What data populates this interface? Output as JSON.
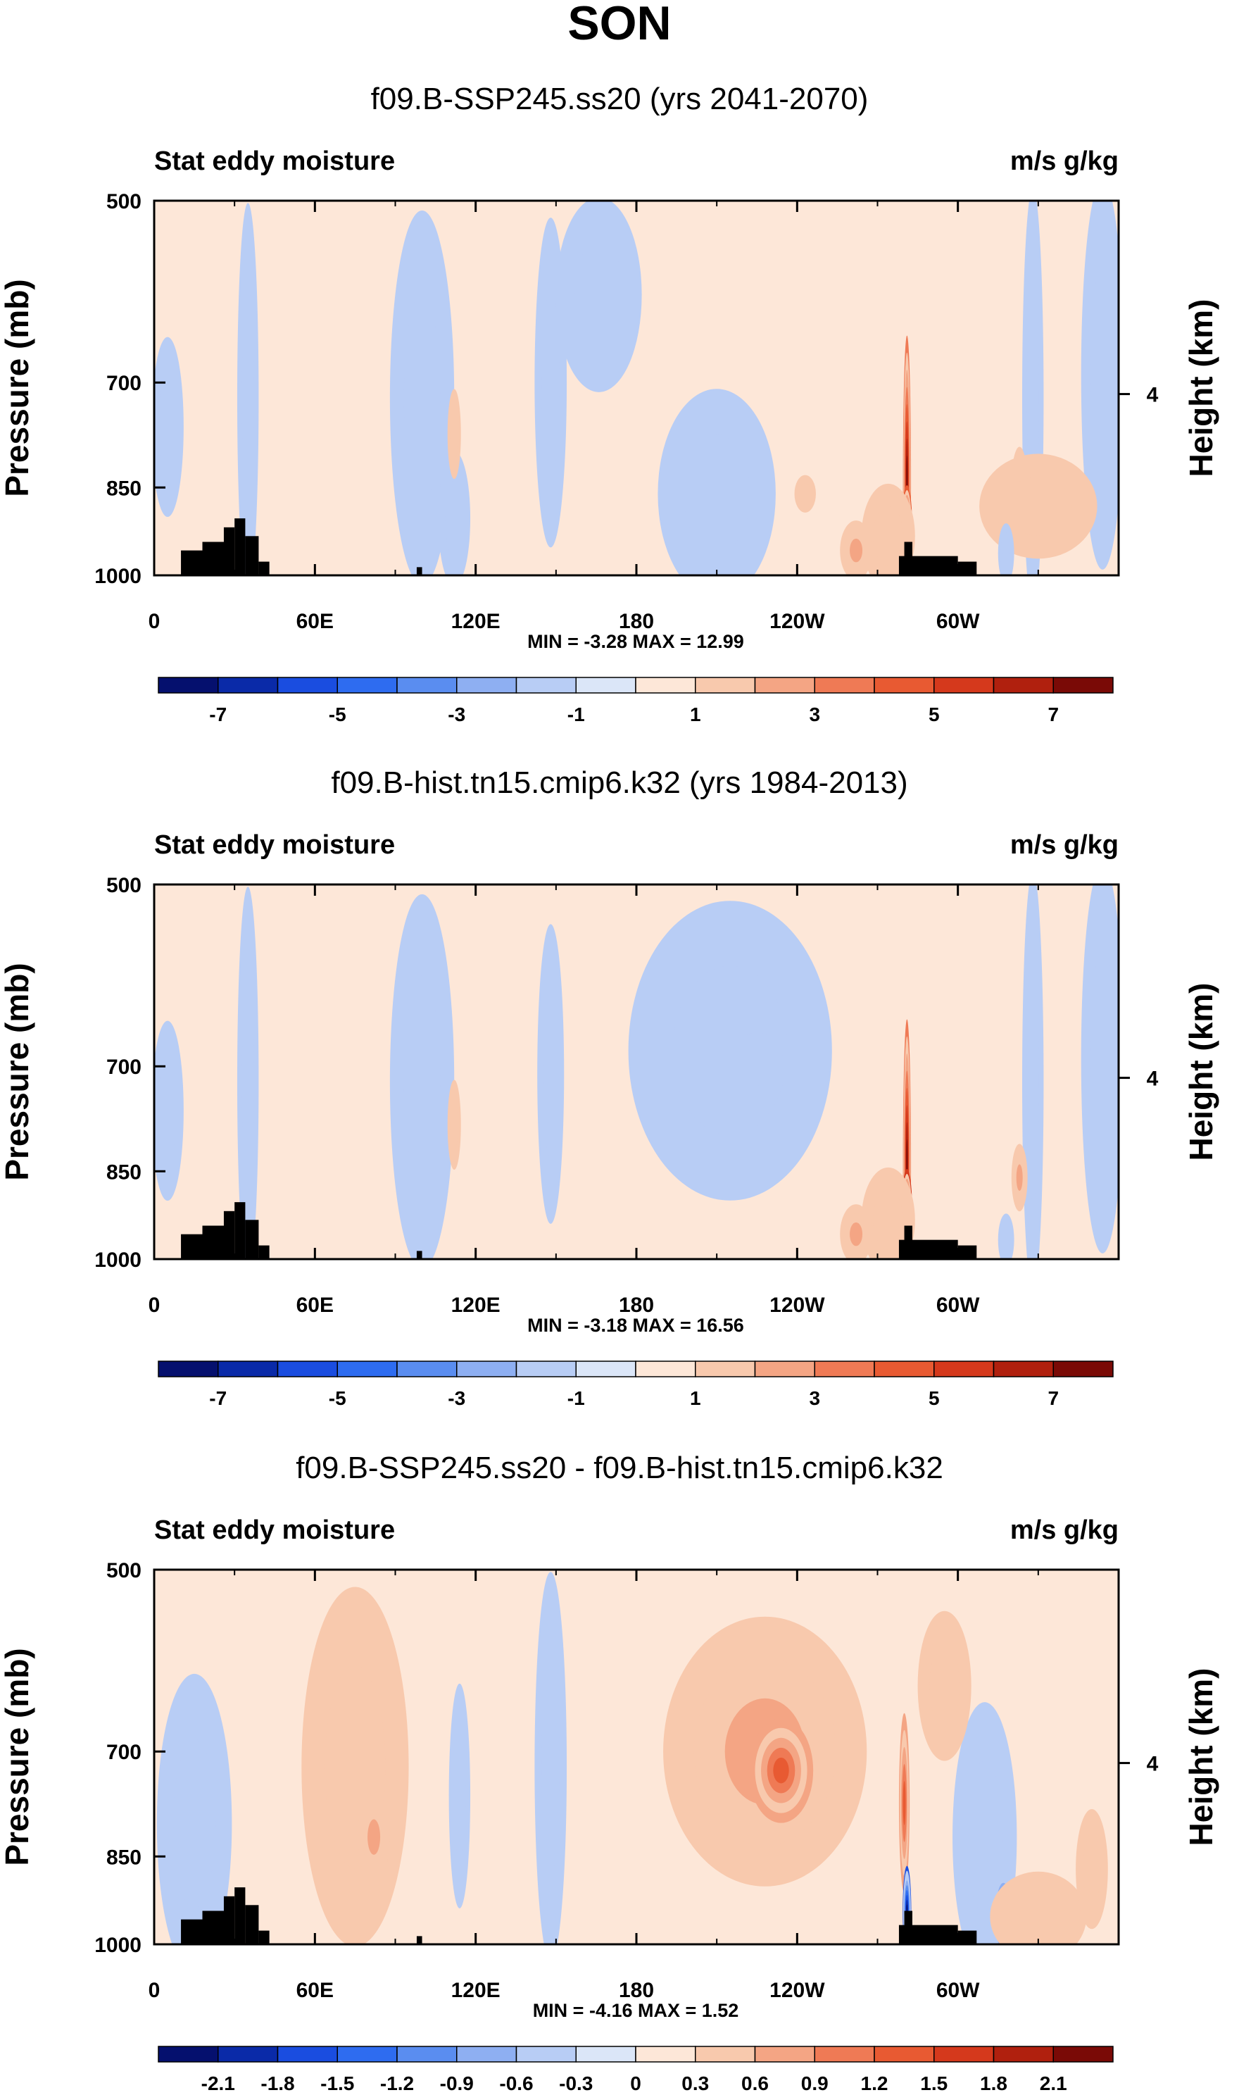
{
  "figure_title": "SON",
  "chart_data": [
    {
      "type": "contour",
      "title": "f09.B-SSP245.ss20 (yrs 2041-2070)",
      "left_label": "Stat eddy moisture",
      "right_label": "m/s g/kg",
      "ylabel": "Pressure (mb)",
      "ylabel_right": "Height (km)",
      "yticks": [
        "500",
        "700",
        "850",
        "1000"
      ],
      "ytick_values": [
        500,
        700,
        850,
        1000
      ],
      "ylim": [
        1000,
        500
      ],
      "right_tick": "4",
      "right_tick_km": 4,
      "xticks": [
        "0",
        "60E",
        "120E",
        "180",
        "120W",
        "60W"
      ],
      "xtick_lon": [
        0,
        60,
        120,
        180,
        240,
        300
      ],
      "xlim": [
        0,
        360
      ],
      "stats": "MIN = -3.28  MAX = 12.99",
      "min": -3.28,
      "max": 12.99,
      "colorbar_labels": [
        "-7",
        "-5",
        "-3",
        "-1",
        "1",
        "3",
        "5",
        "7"
      ],
      "colorbar_levels": [
        -8,
        -7,
        -6,
        -5,
        -4,
        -3,
        -2,
        -1,
        0,
        1,
        2,
        3,
        4,
        5,
        6,
        7,
        8
      ],
      "blobs": [
        {
          "lon": 166,
          "p": 595,
          "rx": 16,
          "rp": 130,
          "v": -0.6
        },
        {
          "lon": 148,
          "p": 700,
          "rx": 6,
          "rp": 220,
          "v": -0.5
        },
        {
          "lon": 100,
          "p": 720,
          "rx": 12,
          "rp": 250,
          "v": -0.4
        },
        {
          "lon": 35,
          "p": 720,
          "rx": 4,
          "rp": 260,
          "v": -0.4
        },
        {
          "lon": 5,
          "p": 760,
          "rx": 6,
          "rp": 120,
          "v": -0.4
        },
        {
          "lon": 112,
          "p": 900,
          "rx": 6,
          "rp": 90,
          "v": -0.3
        },
        {
          "lon": 210,
          "p": 860,
          "rx": 22,
          "rp": 140,
          "v": -0.3
        },
        {
          "lon": 354,
          "p": 690,
          "rx": 8,
          "rp": 260,
          "v": -0.4
        },
        {
          "lon": 328,
          "p": 720,
          "rx": 4,
          "rp": 280,
          "v": -0.35
        },
        {
          "lon": 281,
          "p": 835,
          "rx": 1.5,
          "rp": 190,
          "v": 7
        },
        {
          "lon": 281,
          "p": 920,
          "rx": 2,
          "rp": 60,
          "v": 9
        },
        {
          "lon": 274,
          "p": 930,
          "rx": 10,
          "rp": 70,
          "v": 1.8
        },
        {
          "lon": 262,
          "p": 955,
          "rx": 6,
          "rp": 40,
          "v": 2.5
        },
        {
          "lon": 323,
          "p": 845,
          "rx": 3,
          "rp": 50,
          "v": 2.6
        },
        {
          "lon": 330,
          "p": 880,
          "rx": 22,
          "rp": 70,
          "v": 1.2
        },
        {
          "lon": 318,
          "p": 960,
          "rx": 3,
          "rp": 40,
          "v": -2.8
        },
        {
          "lon": 112,
          "p": 770,
          "rx": 2.5,
          "rp": 60,
          "v": 1.2
        },
        {
          "lon": 243,
          "p": 860,
          "rx": 4,
          "rp": 25,
          "v": 1.2
        }
      ]
    },
    {
      "type": "contour",
      "title": "f09.B-hist.tn15.cmip6.k32 (yrs 1984-2013)",
      "left_label": "Stat eddy moisture",
      "right_label": "m/s g/kg",
      "ylabel": "Pressure (mb)",
      "ylabel_right": "Height (km)",
      "yticks": [
        "500",
        "700",
        "850",
        "1000"
      ],
      "ytick_values": [
        500,
        700,
        850,
        1000
      ],
      "ylim": [
        1000,
        500
      ],
      "right_tick": "4",
      "right_tick_km": 4,
      "xticks": [
        "0",
        "60E",
        "120E",
        "180",
        "120W",
        "60W"
      ],
      "xtick_lon": [
        0,
        60,
        120,
        180,
        240,
        300
      ],
      "xlim": [
        0,
        360
      ],
      "stats": "MIN = -3.18  MAX = 16.56",
      "min": -3.18,
      "max": 16.56,
      "colorbar_labels": [
        "-7",
        "-5",
        "-3",
        "-1",
        "1",
        "3",
        "5",
        "7"
      ],
      "colorbar_levels": [
        -8,
        -7,
        -6,
        -5,
        -4,
        -3,
        -2,
        -1,
        0,
        1,
        2,
        3,
        4,
        5,
        6,
        7,
        8
      ],
      "blobs": [
        {
          "lon": 215,
          "p": 680,
          "rx": 38,
          "rp": 200,
          "v": -0.8
        },
        {
          "lon": 225,
          "p": 700,
          "rx": 10,
          "rp": 45,
          "v": -1.6
        },
        {
          "lon": 100,
          "p": 720,
          "rx": 12,
          "rp": 250,
          "v": -0.4
        },
        {
          "lon": 35,
          "p": 720,
          "rx": 4,
          "rp": 260,
          "v": -0.4
        },
        {
          "lon": 5,
          "p": 760,
          "rx": 6,
          "rp": 120,
          "v": -0.4
        },
        {
          "lon": 148,
          "p": 710,
          "rx": 5,
          "rp": 200,
          "v": -0.4
        },
        {
          "lon": 354,
          "p": 690,
          "rx": 8,
          "rp": 260,
          "v": -0.4
        },
        {
          "lon": 328,
          "p": 720,
          "rx": 4,
          "rp": 280,
          "v": -0.35
        },
        {
          "lon": 281,
          "p": 835,
          "rx": 1.5,
          "rp": 190,
          "v": 7
        },
        {
          "lon": 281,
          "p": 920,
          "rx": 2,
          "rp": 60,
          "v": 10
        },
        {
          "lon": 274,
          "p": 930,
          "rx": 10,
          "rp": 70,
          "v": 1.8
        },
        {
          "lon": 262,
          "p": 955,
          "rx": 6,
          "rp": 40,
          "v": 2.5
        },
        {
          "lon": 323,
          "p": 860,
          "rx": 3,
          "rp": 45,
          "v": 2.8
        },
        {
          "lon": 318,
          "p": 965,
          "rx": 3,
          "rp": 35,
          "v": -2.8
        },
        {
          "lon": 112,
          "p": 780,
          "rx": 2.5,
          "rp": 60,
          "v": 1.2
        }
      ]
    },
    {
      "type": "contour",
      "title": "f09.B-SSP245.ss20 - f09.B-hist.tn15.cmip6.k32",
      "left_label": "Stat eddy moisture",
      "right_label": "m/s g/kg",
      "ylabel": "Pressure (mb)",
      "ylabel_right": "Height (km)",
      "yticks": [
        "500",
        "700",
        "850",
        "1000"
      ],
      "ytick_values": [
        500,
        700,
        850,
        1000
      ],
      "ylim": [
        1000,
        500
      ],
      "right_tick": "4",
      "right_tick_km": 4,
      "xticks": [
        "0",
        "60E",
        "120E",
        "180",
        "120W",
        "60W"
      ],
      "xtick_lon": [
        0,
        60,
        120,
        180,
        240,
        300
      ],
      "xlim": [
        0,
        360
      ],
      "stats": "MIN = -4.16  MAX =  1.52",
      "min": -4.16,
      "max": 1.52,
      "colorbar_labels": [
        "-2.1",
        "-1.8",
        "-1.5",
        "-1.2",
        "-0.9",
        "-0.6",
        "-0.3",
        "0",
        "0.3",
        "0.6",
        "0.9",
        "1.2",
        "1.5",
        "1.8",
        "2.1"
      ],
      "colorbar_levels": [
        -2.4,
        -2.1,
        -1.8,
        -1.5,
        -1.2,
        -0.9,
        -0.6,
        -0.3,
        0,
        0.3,
        0.6,
        0.9,
        1.2,
        1.5,
        1.8,
        2.1,
        2.4
      ],
      "blobs": [
        {
          "lon": 228,
          "p": 700,
          "rx": 38,
          "rp": 180,
          "v": 0.8
        },
        {
          "lon": 234,
          "p": 725,
          "rx": 12,
          "rp": 70,
          "v": 1.2
        },
        {
          "lon": 75,
          "p": 720,
          "rx": 20,
          "rp": 240,
          "v": 0.45
        },
        {
          "lon": 82,
          "p": 820,
          "rx": 6,
          "rp": 60,
          "v": 0.75
        },
        {
          "lon": 15,
          "p": 800,
          "rx": 14,
          "rp": 200,
          "v": -0.22
        },
        {
          "lon": 148,
          "p": 720,
          "rx": 6,
          "rp": 260,
          "v": -0.2
        },
        {
          "lon": 114,
          "p": 760,
          "rx": 4,
          "rp": 150,
          "v": -0.2
        },
        {
          "lon": 280,
          "p": 770,
          "rx": 2,
          "rp": 120,
          "v": 1.2
        },
        {
          "lon": 281,
          "p": 940,
          "rx": 1.6,
          "rp": 60,
          "v": -3.5
        },
        {
          "lon": 310,
          "p": 820,
          "rx": 12,
          "rp": 180,
          "v": -0.25
        },
        {
          "lon": 317,
          "p": 950,
          "rx": 3,
          "rp": 45,
          "v": -1.4
        },
        {
          "lon": 330,
          "p": 950,
          "rx": 18,
          "rp": 60,
          "v": 0.35
        },
        {
          "lon": 295,
          "p": 620,
          "rx": 10,
          "rp": 100,
          "v": 0.3
        },
        {
          "lon": 350,
          "p": 870,
          "rx": 6,
          "rp": 80,
          "v": 0.3
        }
      ]
    }
  ]
}
